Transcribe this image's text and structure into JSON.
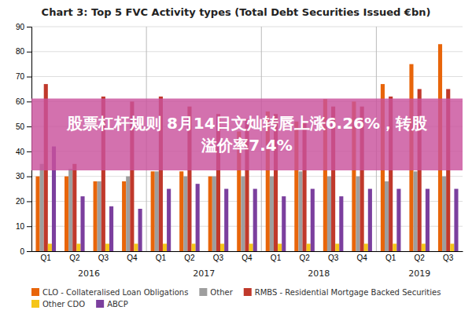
{
  "chart_data": {
    "type": "bar",
    "title": "Chart 3: Top 5 FVC Activity types (Total Debt Securities Issued €bn)",
    "categories": [
      "Q1",
      "Q2",
      "Q3",
      "Q4",
      "Q1",
      "Q2",
      "Q3",
      "Q4",
      "Q1",
      "Q2",
      "Q3",
      "Q4",
      "Q1",
      "Q2",
      "Q3"
    ],
    "year_labels": [
      "2016",
      "2017",
      "2018",
      "2019"
    ],
    "series": [
      {
        "name": "CLO - Collateralised Loan Obligations",
        "color": "#e8650a",
        "values": [
          30,
          30,
          28,
          28,
          32,
          32,
          30,
          48,
          56,
          52,
          61,
          60,
          67,
          75,
          83
        ]
      },
      {
        "name": "Other",
        "color": "#9e9e9e",
        "values": [
          35,
          33,
          28,
          30,
          32,
          30,
          30,
          30,
          30,
          32,
          30,
          30,
          28,
          32,
          30
        ]
      },
      {
        "name": "RMBS - Residential Mortgage Backed Securities",
        "color": "#c0392b",
        "values": [
          67,
          35,
          62,
          60,
          62,
          58,
          55,
          53,
          55,
          52,
          58,
          58,
          62,
          65,
          65
        ]
      },
      {
        "name": "Other CDO",
        "color": "#f5c518",
        "values": [
          3,
          3,
          3,
          3,
          3,
          3,
          3,
          3,
          3,
          3,
          3,
          3,
          3,
          3,
          3
        ]
      },
      {
        "name": "ABCP",
        "color": "#7b3f9e",
        "values": [
          42,
          22,
          18,
          17,
          25,
          27,
          25,
          25,
          22,
          25,
          22,
          25,
          25,
          25,
          25
        ]
      }
    ],
    "ylim": [
      0,
      90
    ],
    "yticks": [
      0,
      10,
      20,
      30,
      40,
      50,
      60,
      70,
      80,
      90
    ],
    "grid": true,
    "legend": "bottom",
    "annotations": [
      {
        "lines": [
          "股票杠杆规则 8月14日文灿转唇上涨6.26%，转股",
          "溢价率7.4%"
        ],
        "color": "#c9529c",
        "text_color": "#ffffff"
      }
    ]
  }
}
